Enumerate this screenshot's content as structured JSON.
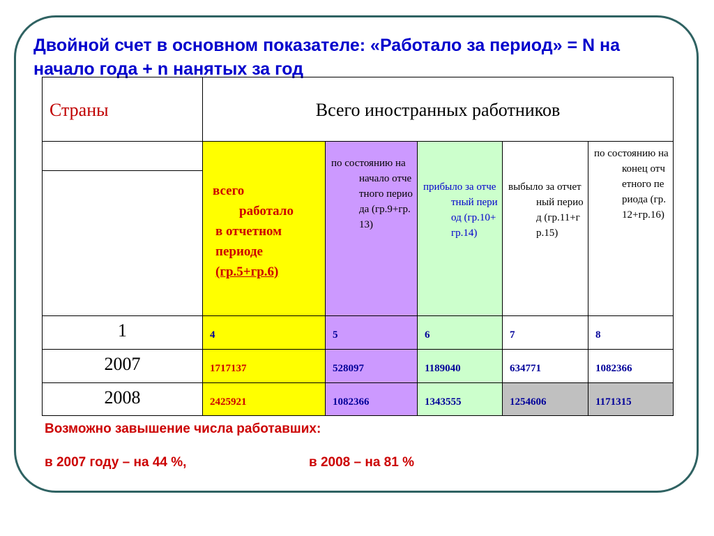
{
  "title": "Двойной счет в основном показателе: «Работало за период» =  N на начало года + n нанятых за год",
  "table": {
    "header_countries": "Страны",
    "header_total": "Всего иностранных работников",
    "col_worked_lines": [
      "всего",
      "работало",
      "в отчетном",
      "периоде",
      "(гр.5+гр.6)"
    ],
    "col_start": "по состоянию на начало отчетного периода (гр.9+гр.13)",
    "col_arrived": "прибыло за отчетный период (гр.10+гр.14)",
    "col_left": "выбыло за отчетный период (гр.11+гр.15)",
    "col_end": "по состоянию на конец отчетного периода (гр.12+гр.16)",
    "rows": [
      {
        "label": "1",
        "values": [
          "4",
          "5",
          "6",
          "7",
          "8"
        ]
      },
      {
        "label": "2007",
        "values": [
          "1717137",
          "528097",
          "1189040",
          "634771",
          "1082366"
        ]
      },
      {
        "label": "2008",
        "values": [
          "2425921",
          "1082366",
          "1343555",
          "1254606",
          "1171315"
        ]
      }
    ]
  },
  "notes": {
    "line1": "Возможно завышение числа работавших:",
    "line2a": "в 2007 году – на 44 %,",
    "line2b": "в 2008 – на  81 %"
  },
  "colors": {
    "frame": "#2f6262",
    "title": "#0000cc",
    "note": "#cc0000",
    "yellow": "#ffff00",
    "purple": "#cc99ff",
    "green": "#ccffcc",
    "gray": "#c0c0c0"
  }
}
